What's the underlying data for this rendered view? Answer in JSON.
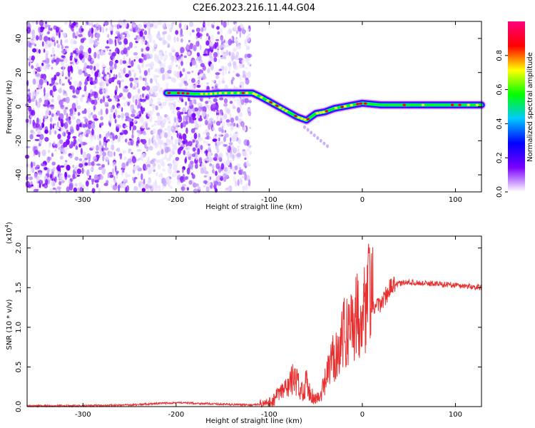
{
  "figure": {
    "title": "C2E6.2023.216.11.44.G04"
  },
  "chart_data": [
    {
      "type": "heatmap",
      "xlabel": "Height of straight line (km)",
      "ylabel": "Frequency (Hz)",
      "xlim": [
        -360,
        128
      ],
      "ylim": [
        -50,
        50
      ],
      "xticks": [
        -300,
        -200,
        -100,
        0,
        100
      ],
      "yticks": [
        -40,
        -20,
        0,
        20,
        40
      ],
      "noise_region": {
        "x_start": -360,
        "x_end": -120,
        "freq_range": [
          -50,
          50
        ]
      },
      "signal_ridge": {
        "x": [
          -210,
          -195,
          -180,
          -165,
          -150,
          -130,
          -118,
          -110,
          -100,
          -90,
          -80,
          -70,
          -60,
          -50,
          -40,
          -30,
          -20,
          -10,
          0,
          20,
          50,
          80,
          100,
          128
        ],
        "freq": [
          8,
          8,
          7.5,
          7.5,
          8,
          8,
          8,
          6,
          3,
          0,
          -3,
          -6,
          -8,
          -4,
          -3,
          -1,
          0,
          1,
          2,
          1,
          1,
          1,
          1,
          1
        ]
      },
      "colorbar": {
        "label": "Normalized spectral amplitude",
        "range": [
          0,
          1
        ],
        "ticks": [
          0.0,
          0.2,
          0.4,
          0.6,
          0.8
        ],
        "tick_labels": [
          "0.0",
          "0.2",
          "0.4",
          "0.6",
          "0.8"
        ],
        "colormap": [
          "#ffffff",
          "#7a00ff",
          "#0000ff",
          "#00c8ff",
          "#00ff00",
          "#ffff00",
          "#ff0000",
          "#ff007f"
        ]
      },
      "grid": false
    },
    {
      "type": "line",
      "xlabel": "Height of straight line (km)",
      "ylabel": "SNR (10 * v/v)",
      "yscale_label": "(x10",
      "yscale_exp": "4",
      "yscale_close": ")",
      "xlim": [
        -360,
        128
      ],
      "ylim": [
        0,
        2.15
      ],
      "xticks": [
        -300,
        -200,
        -100,
        0,
        100
      ],
      "yticks": [
        0.0,
        0.5,
        1.0,
        1.5,
        2.0
      ],
      "ytick_labels": [
        "0.0",
        "0.5",
        "1.0",
        "1.5",
        "2.0"
      ],
      "series": [
        {
          "color": "#e83030",
          "x": [
            -360,
            -300,
            -250,
            -200,
            -150,
            -120,
            -100,
            -90,
            -80,
            -75,
            -70,
            -65,
            -60,
            -55,
            -50,
            -45,
            -40,
            -35,
            -30,
            -25,
            -20,
            -15,
            -10,
            -5,
            0,
            5,
            8,
            10,
            15,
            20,
            25,
            30,
            40,
            50,
            60,
            70,
            80,
            90,
            100,
            110,
            128
          ],
          "y": [
            0.01,
            0.01,
            0.02,
            0.05,
            0.03,
            0.02,
            0.04,
            0.15,
            0.25,
            0.35,
            0.3,
            0.2,
            0.3,
            0.15,
            0.1,
            0.12,
            0.3,
            0.5,
            0.65,
            0.75,
            0.9,
            1.0,
            1.1,
            1.15,
            1.25,
            1.3,
            1.5,
            1.2,
            1.25,
            1.3,
            1.4,
            1.5,
            1.55,
            1.57,
            1.56,
            1.55,
            1.55,
            1.54,
            1.53,
            1.52,
            1.5
          ]
        }
      ],
      "grid": false
    }
  ]
}
